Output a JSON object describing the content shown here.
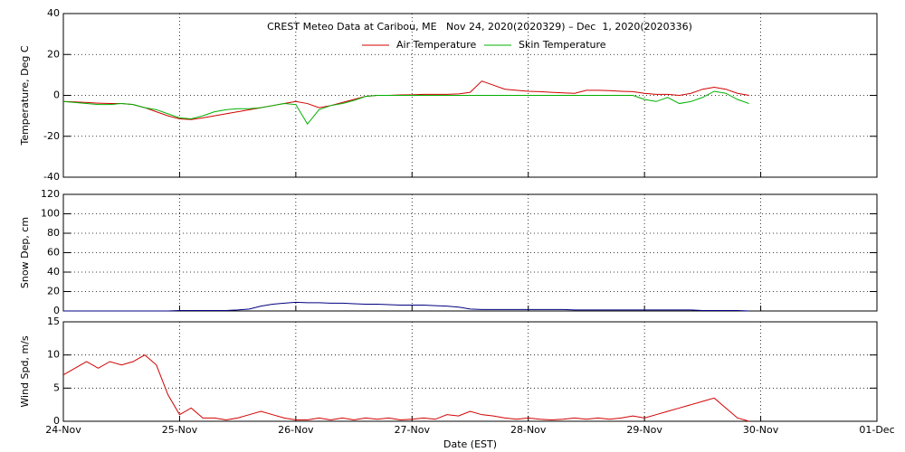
{
  "chart_data": [
    {
      "type": "line",
      "title": "CREST Meteo Data at Caribou, ME   Nov 24, 2020(2020329) – Dec  1, 2020(2020336)",
      "ylabel": "Temperature, Deg C",
      "x": [
        0,
        0.1,
        0.2,
        0.3,
        0.4,
        0.5,
        0.6,
        0.7,
        0.8,
        0.9,
        1,
        1.1,
        1.2,
        1.3,
        1.4,
        1.5,
        1.6,
        1.7,
        1.8,
        1.9,
        2,
        2.1,
        2.2,
        2.3,
        2.4,
        2.5,
        2.6,
        2.7,
        2.8,
        2.9,
        3,
        3.1,
        3.2,
        3.3,
        3.4,
        3.5,
        3.6,
        3.7,
        3.8,
        3.9,
        4,
        4.1,
        4.2,
        4.3,
        4.4,
        4.5,
        4.6,
        4.7,
        4.8,
        4.9,
        5,
        5.1,
        5.2,
        5.3,
        5.4,
        5.5,
        5.6,
        5.7,
        5.8,
        5.9
      ],
      "series": [
        {
          "name": "Air Temperature",
          "color": "#d00000",
          "values": [
            -3,
            -3.2,
            -3.5,
            -3.8,
            -4,
            -4,
            -4.5,
            -6,
            -8,
            -10,
            -11.5,
            -11.8,
            -11,
            -10,
            -9,
            -8,
            -7,
            -6,
            -5,
            -4,
            -3,
            -4,
            -6,
            -5,
            -3.5,
            -2,
            -0.5,
            0,
            0,
            0.2,
            0.3,
            0.5,
            0.5,
            0.5,
            0.7,
            1.5,
            7,
            5,
            3,
            2.5,
            2,
            1.8,
            1.5,
            1.2,
            1,
            2.5,
            2.5,
            2.3,
            2,
            1.8,
            1,
            0.5,
            0.5,
            0,
            1,
            3,
            4,
            3,
            1,
            0
          ]
        },
        {
          "name": "Skin Temperature",
          "color": "#00b000",
          "values": [
            -3,
            -3.5,
            -4,
            -4.5,
            -4.5,
            -4,
            -4.5,
            -6,
            -7,
            -9,
            -11,
            -11.5,
            -10,
            -8,
            -7,
            -6.5,
            -6.5,
            -6,
            -5,
            -4,
            -4.5,
            -14,
            -7,
            -5,
            -4,
            -2.5,
            -0.5,
            0,
            0,
            0,
            0,
            0,
            0,
            0,
            0,
            0,
            0,
            0,
            0,
            0,
            0,
            0,
            0,
            0,
            0,
            0,
            0,
            0,
            0,
            0,
            -2,
            -3,
            -1,
            -4,
            -3,
            -1,
            2,
            1,
            -2,
            -4
          ]
        }
      ],
      "xlim": [
        0,
        7
      ],
      "xticks": [
        1,
        2,
        3,
        4,
        5,
        6
      ],
      "ylim": [
        -40,
        40
      ],
      "yticks": [
        -40,
        -20,
        0,
        20,
        40
      ],
      "grid": true
    },
    {
      "type": "line",
      "ylabel": "Snow Dep, cm",
      "x": [
        0,
        0.1,
        0.2,
        0.3,
        0.4,
        0.5,
        0.6,
        0.7,
        0.8,
        0.9,
        1,
        1.1,
        1.2,
        1.3,
        1.4,
        1.5,
        1.6,
        1.7,
        1.8,
        1.9,
        2,
        2.1,
        2.2,
        2.3,
        2.4,
        2.5,
        2.6,
        2.7,
        2.8,
        2.9,
        3,
        3.1,
        3.2,
        3.3,
        3.4,
        3.5,
        3.6,
        3.7,
        3.8,
        3.9,
        4,
        4.1,
        4.2,
        4.3,
        4.4,
        4.5,
        4.6,
        4.7,
        4.8,
        4.9,
        5,
        5.1,
        5.2,
        5.3,
        5.4,
        5.5,
        5.6,
        5.7,
        5.8,
        5.9
      ],
      "series": [
        {
          "color": "#000080",
          "values": [
            0,
            0,
            0,
            0,
            0,
            0,
            0,
            0,
            0,
            0,
            0.5,
            0.5,
            0.5,
            0.5,
            0.5,
            1,
            2,
            5,
            7,
            8,
            9,
            8.5,
            8.5,
            8,
            8,
            7.5,
            7,
            7,
            6.5,
            6,
            6,
            6,
            5.5,
            5,
            4,
            2,
            1.5,
            1.5,
            1.5,
            1.5,
            1.5,
            1.5,
            1.5,
            1.5,
            1,
            1,
            1,
            1,
            1,
            1,
            1,
            1,
            1,
            1,
            1,
            0.5,
            0.5,
            0.5,
            0.5,
            0
          ]
        }
      ],
      "xlim": [
        0,
        7
      ],
      "xticks": [
        1,
        2,
        3,
        4,
        5,
        6
      ],
      "ylim": [
        0,
        120
      ],
      "yticks": [
        0,
        20,
        40,
        60,
        80,
        100,
        120
      ],
      "grid": true
    },
    {
      "type": "line",
      "ylabel": "Wind Spd, m/s",
      "xlabel": "Date (EST)",
      "x": [
        0,
        0.1,
        0.2,
        0.3,
        0.4,
        0.5,
        0.6,
        0.7,
        0.8,
        0.9,
        1,
        1.1,
        1.2,
        1.3,
        1.4,
        1.5,
        1.6,
        1.7,
        1.8,
        1.9,
        2,
        2.1,
        2.2,
        2.3,
        2.4,
        2.5,
        2.6,
        2.7,
        2.8,
        2.9,
        3,
        3.1,
        3.2,
        3.3,
        3.4,
        3.5,
        3.6,
        3.7,
        3.8,
        3.9,
        4,
        4.1,
        4.2,
        4.3,
        4.4,
        4.5,
        4.6,
        4.7,
        4.8,
        4.9,
        5,
        5.1,
        5.2,
        5.3,
        5.4,
        5.5,
        5.6,
        5.7,
        5.8,
        5.9
      ],
      "series": [
        {
          "color": "#d00000",
          "values": [
            7,
            8,
            9,
            8,
            9,
            8.5,
            9,
            10,
            8.5,
            4,
            1,
            2,
            0.5,
            0.5,
            0.2,
            0.5,
            1,
            1.5,
            1,
            0.5,
            0.2,
            0.2,
            0.5,
            0.2,
            0.5,
            0.2,
            0.5,
            0.3,
            0.5,
            0.2,
            0.3,
            0.5,
            0.3,
            1,
            0.8,
            1.5,
            1,
            0.8,
            0.5,
            0.3,
            0.5,
            0.3,
            0.2,
            0.3,
            0.5,
            0.3,
            0.5,
            0.3,
            0.5,
            0.8,
            0.5,
            1,
            1.5,
            2,
            2.5,
            3,
            3.5,
            2,
            0.5,
            0
          ]
        }
      ],
      "xlim": [
        0,
        7
      ],
      "xticks": [
        {
          "value": 0,
          "label": "24-Nov"
        },
        {
          "value": 1,
          "label": "25-Nov"
        },
        {
          "value": 2,
          "label": "26-Nov"
        },
        {
          "value": 3,
          "label": "27-Nov"
        },
        {
          "value": 4,
          "label": "28-Nov"
        },
        {
          "value": 5,
          "label": "29-Nov"
        },
        {
          "value": 6,
          "label": "30-Nov"
        },
        {
          "value": 7,
          "label": "01-Dec"
        }
      ],
      "ylim": [
        0,
        15
      ],
      "yticks": [
        0,
        5,
        10,
        15
      ],
      "grid": true
    }
  ]
}
